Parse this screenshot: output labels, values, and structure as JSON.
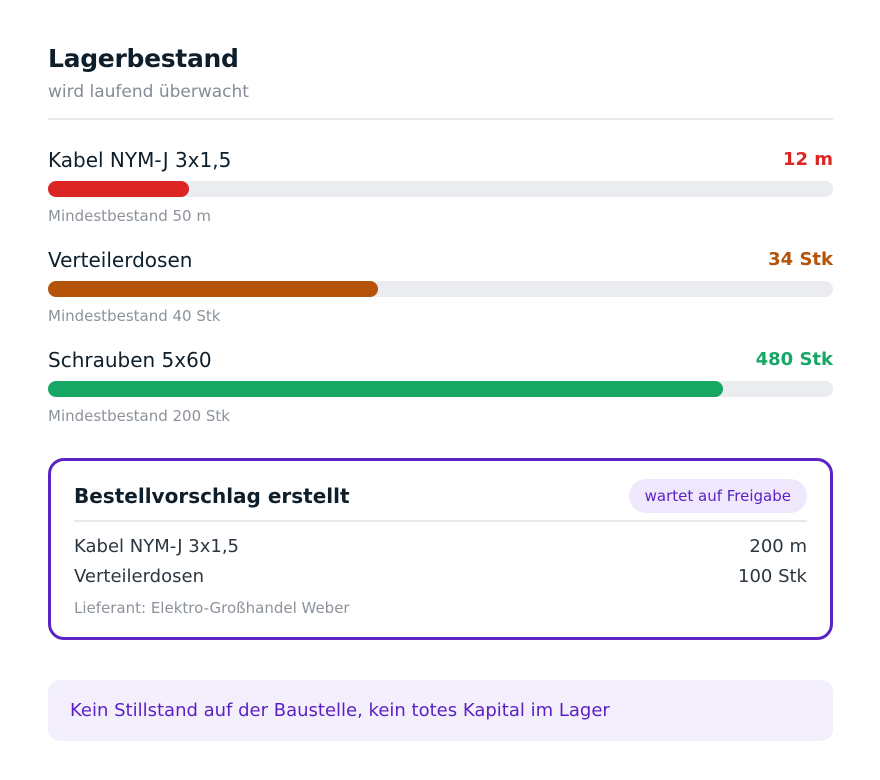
{
  "header": {
    "title": "Lagerbestand",
    "subtitle": "wird laufend überwacht"
  },
  "items": [
    {
      "name": "Kabel NYM-J 3x1,5",
      "value": "12 m",
      "min_label": "Mindestbestand 50 m",
      "fill_fraction": 0.18,
      "color": "#dc2626"
    },
    {
      "name": "Verteilerdosen",
      "value": "34 Stk",
      "min_label": "Mindestbestand 40 Stk",
      "fill_fraction": 0.42,
      "color": "#b45309"
    },
    {
      "name": "Schrauben 5x60",
      "value": "480 Stk",
      "min_label": "Mindestbestand 200 Stk",
      "fill_fraction": 0.86,
      "color": "#16a765"
    }
  ],
  "order": {
    "title": "Bestellvorschlag erstellt",
    "badge": "wartet auf Freigabe",
    "lines": [
      {
        "name": "Kabel NYM-J 3x1,5",
        "qty": "200 m"
      },
      {
        "name": "Verteilerdosen",
        "qty": "100 Stk"
      }
    ],
    "supplier": "Lieferant: Elektro-Großhandel Weber",
    "accent_color": "#5b24c4"
  },
  "footer": {
    "text": "Kein Stillstand auf der Baustelle, kein totes Kapital im Lager"
  }
}
